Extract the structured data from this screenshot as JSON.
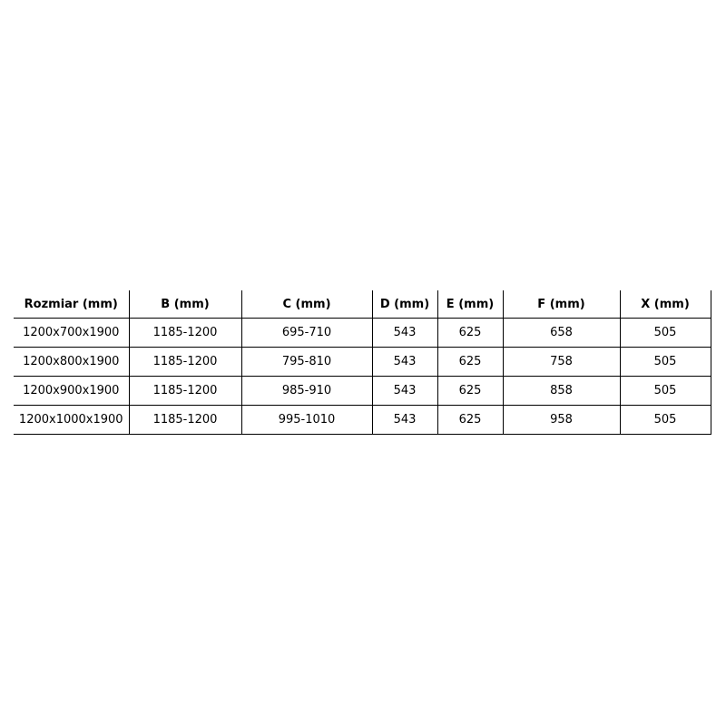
{
  "table": {
    "headers": [
      "Rozmiar (mm)",
      "B (mm)",
      "C (mm)",
      "D (mm)",
      "E (mm)",
      "F (mm)",
      "X (mm)"
    ],
    "rows": [
      [
        "1200x700x1900",
        "1185-1200",
        "695-710",
        "543",
        "625",
        "658",
        "505"
      ],
      [
        "1200x800x1900",
        "1185-1200",
        "795-810",
        "543",
        "625",
        "758",
        "505"
      ],
      [
        "1200x900x1900",
        "1185-1200",
        "985-910",
        "543",
        "625",
        "858",
        "505"
      ],
      [
        "1200x1000x1900",
        "1185-1200",
        "995-1010",
        "543",
        "625",
        "958",
        "505"
      ]
    ]
  }
}
